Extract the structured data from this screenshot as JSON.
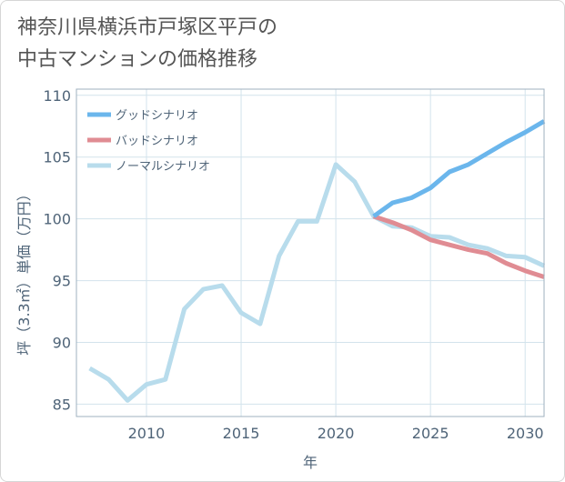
{
  "title": {
    "line1": "神奈川県横浜市戸塚区平戸の",
    "line2": "中古マンションの価格推移"
  },
  "chart_data": {
    "type": "line",
    "xlabel": "年",
    "ylabel": "坪（3.3㎡）単価（万円）",
    "xlim": [
      2006.3,
      2031
    ],
    "ylim": [
      84,
      110.5
    ],
    "xticks": [
      2010,
      2015,
      2020,
      2025,
      2030
    ],
    "yticks": [
      85,
      90,
      95,
      100,
      105,
      110
    ],
    "grid": true,
    "legend_position": "top-left",
    "series": [
      {
        "name": "グッドシナリオ",
        "color": "#6bb6ec",
        "points": [
          [
            2022,
            100.2
          ],
          [
            2023,
            101.3
          ],
          [
            2024,
            101.7
          ],
          [
            2025,
            102.5
          ],
          [
            2026,
            103.8
          ],
          [
            2027,
            104.4
          ],
          [
            2028,
            105.3
          ],
          [
            2029,
            106.2
          ],
          [
            2030,
            107.0
          ],
          [
            2031,
            107.9
          ]
        ]
      },
      {
        "name": "バッドシナリオ",
        "color": "#e08c93",
        "points": [
          [
            2022,
            100.2
          ],
          [
            2023,
            99.7
          ],
          [
            2024,
            99.1
          ],
          [
            2025,
            98.3
          ],
          [
            2026,
            97.9
          ],
          [
            2027,
            97.5
          ],
          [
            2028,
            97.2
          ],
          [
            2029,
            96.4
          ],
          [
            2030,
            95.8
          ],
          [
            2031,
            95.3
          ]
        ]
      },
      {
        "name": "ノーマルシナリオ",
        "color": "#b8dcec",
        "points": [
          [
            2007,
            87.9
          ],
          [
            2008,
            87.0
          ],
          [
            2009,
            85.3
          ],
          [
            2010,
            86.6
          ],
          [
            2011,
            87.0
          ],
          [
            2012,
            92.7
          ],
          [
            2013,
            94.3
          ],
          [
            2014,
            94.6
          ],
          [
            2015,
            92.4
          ],
          [
            2016,
            91.5
          ],
          [
            2017,
            97.0
          ],
          [
            2018,
            99.8
          ],
          [
            2019,
            99.8
          ],
          [
            2020,
            104.4
          ],
          [
            2021,
            103.0
          ],
          [
            2022,
            100.2
          ],
          [
            2023,
            99.4
          ],
          [
            2024,
            99.3
          ],
          [
            2025,
            98.6
          ],
          [
            2026,
            98.5
          ],
          [
            2027,
            97.9
          ],
          [
            2028,
            97.6
          ],
          [
            2029,
            97.0
          ],
          [
            2030,
            96.9
          ],
          [
            2031,
            96.2
          ]
        ]
      }
    ]
  }
}
